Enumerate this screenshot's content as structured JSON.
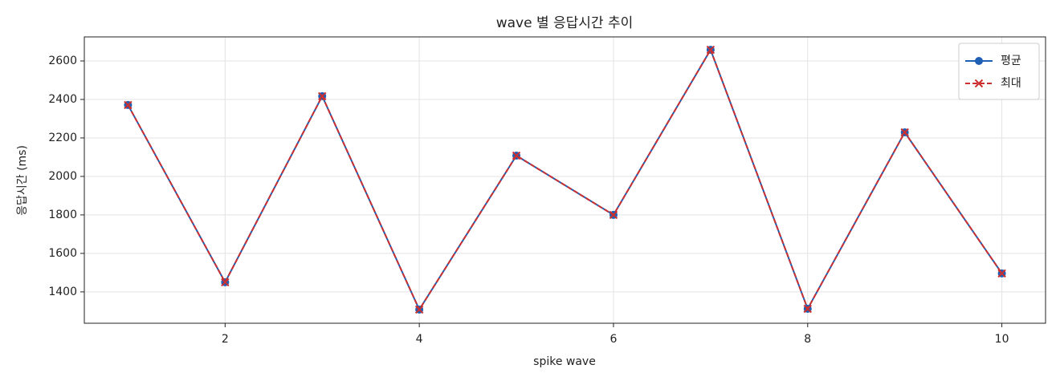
{
  "chart_data": {
    "type": "line",
    "title": "wave 별 응답시간 추이",
    "x_label": "spike wave",
    "y_label": "응답시간 (ms)",
    "x": [
      1,
      2,
      3,
      4,
      5,
      6,
      7,
      8,
      9,
      10
    ],
    "series": [
      {
        "name": "평균",
        "color": "#1f5fb4",
        "marker": "o",
        "dash": false,
        "values": [
          2371,
          1450,
          2417,
          1308,
          2108,
          1800,
          2658,
          1312,
          2229,
          1496
        ]
      },
      {
        "name": "최대",
        "color": "#cc2f2f",
        "marker": "x",
        "dash": true,
        "values": [
          2371,
          1450,
          2417,
          1308,
          2108,
          1800,
          2658,
          1312,
          2229,
          1496
        ]
      }
    ],
    "xlim": [
      0.55,
      10.45
    ],
    "ylim": [
      1237,
      2725
    ],
    "xticks": [
      2,
      4,
      6,
      8,
      10
    ],
    "yticks": [
      1400,
      1600,
      1800,
      2000,
      2200,
      2400,
      2600
    ],
    "grid": true,
    "legend": "upper right"
  }
}
